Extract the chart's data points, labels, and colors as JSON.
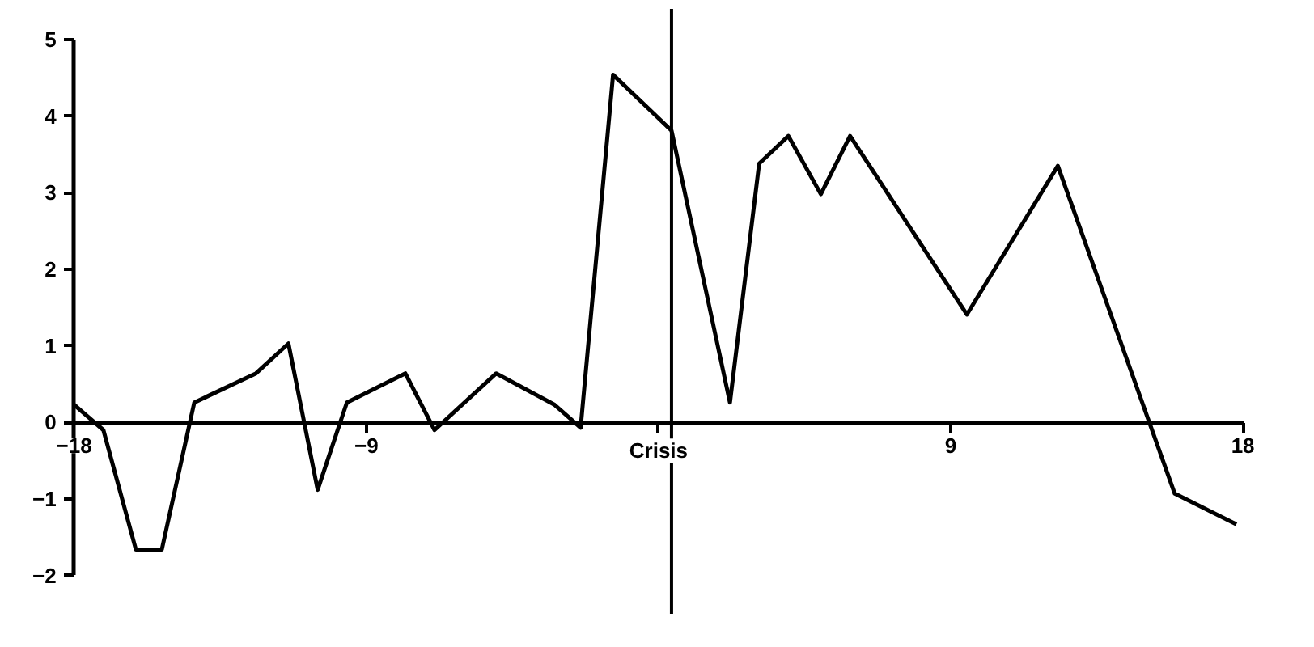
{
  "chart_data": {
    "type": "line",
    "x": [
      -18,
      -17.1,
      -16.1,
      -15.3,
      -14.3,
      -12.4,
      -11.4,
      -10.5,
      -9.6,
      -7.8,
      -6.9,
      -5.0,
      -3.2,
      -2.4,
      -1.4,
      0.4,
      2.2,
      3.1,
      4.0,
      5.0,
      5.9,
      9.5,
      12.3,
      15.9,
      17.8
    ],
    "series": [
      {
        "color": "#000000",
        "values": [
          0.23,
          -0.1,
          -1.66,
          -1.66,
          0.26,
          0.64,
          1.03,
          -0.88,
          0.26,
          0.64,
          -0.1,
          0.64,
          0.23,
          -0.07,
          4.54,
          3.81,
          0.26,
          3.38,
          3.74,
          2.98,
          3.74,
          1.41,
          3.35,
          -0.93,
          -1.33
        ]
      }
    ],
    "xlim": [
      -18,
      18
    ],
    "ylim": [
      -2.5,
      5.4
    ],
    "xticks": [
      -18,
      -9,
      {
        "value": 0,
        "label": "Crisis"
      },
      9,
      18
    ],
    "yticks": [
      -2,
      -1,
      0,
      1,
      2,
      3,
      4,
      5
    ],
    "ref_lines": [
      {
        "axis": "x",
        "value": 0.4,
        "color": "#000000"
      }
    ],
    "grid": false,
    "marker": "none",
    "line_style": "solid"
  }
}
